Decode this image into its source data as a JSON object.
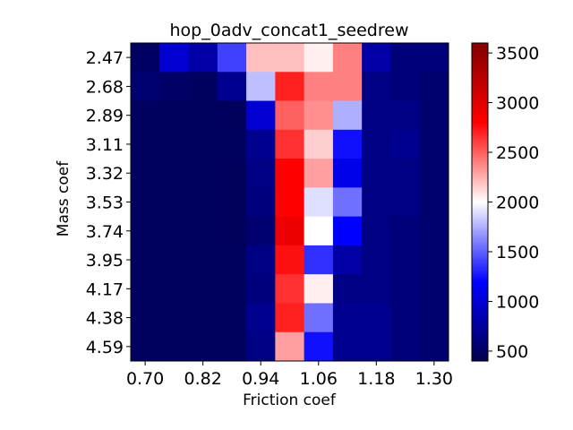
{
  "chart_data": {
    "type": "heatmap",
    "title": "hop_0adv_concat1_seedrew",
    "xlabel": "Friction coef",
    "ylabel": "Mass coef",
    "x_tick_labels": [
      "0.70",
      "0.82",
      "0.94",
      "1.06",
      "1.18",
      "1.30"
    ],
    "y_tick_labels": [
      "2.47",
      "2.68",
      "2.89",
      "3.11",
      "3.32",
      "3.53",
      "3.74",
      "3.95",
      "4.17",
      "4.38",
      "4.59"
    ],
    "colorbar": {
      "min": 400,
      "max": 3600,
      "ticks": [
        500,
        1000,
        1500,
        2000,
        2500,
        3000,
        3500
      ],
      "colormap": "seismic"
    },
    "values": [
      [
        500,
        1000,
        800,
        1400,
        2200,
        2200,
        2050,
        2400,
        800,
        600,
        600
      ],
      [
        560,
        520,
        480,
        700,
        1800,
        2700,
        2400,
        2400,
        650,
        600,
        550
      ],
      [
        480,
        480,
        480,
        470,
        1000,
        2500,
        2350,
        1750,
        650,
        650,
        550
      ],
      [
        480,
        480,
        480,
        480,
        700,
        2650,
        2150,
        1250,
        650,
        700,
        550
      ],
      [
        480,
        480,
        480,
        470,
        650,
        2800,
        2300,
        1100,
        650,
        650,
        550
      ],
      [
        480,
        480,
        480,
        470,
        620,
        2800,
        1900,
        1550,
        650,
        650,
        550
      ],
      [
        480,
        480,
        480,
        470,
        560,
        2900,
        2000,
        1200,
        650,
        600,
        550
      ],
      [
        480,
        480,
        480,
        480,
        650,
        2750,
        1350,
        800,
        650,
        600,
        550
      ],
      [
        480,
        480,
        480,
        480,
        620,
        2650,
        2050,
        650,
        650,
        600,
        550
      ],
      [
        480,
        480,
        480,
        480,
        700,
        2700,
        1550,
        700,
        700,
        600,
        550
      ],
      [
        480,
        480,
        480,
        480,
        650,
        2300,
        1250,
        700,
        700,
        600,
        550
      ]
    ]
  }
}
